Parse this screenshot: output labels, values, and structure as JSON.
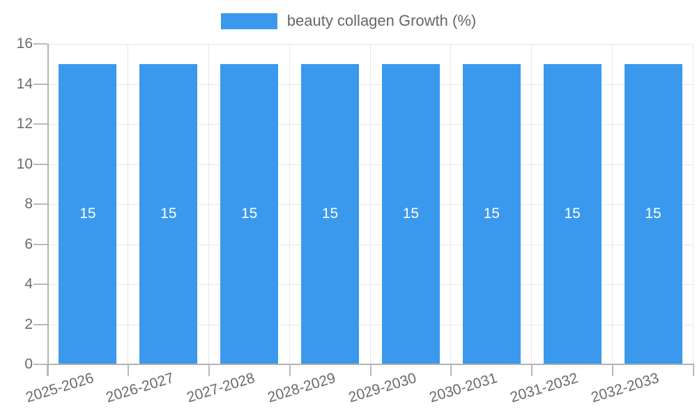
{
  "chart_data": {
    "type": "bar",
    "legend": {
      "label": "beauty collagen Growth (%)",
      "position": "top"
    },
    "categories": [
      "2025-2026",
      "2026-2027",
      "2027-2028",
      "2028-2029",
      "2029-2030",
      "2030-2031",
      "2031-2032",
      "2032-2033"
    ],
    "series": [
      {
        "name": "beauty collagen Growth (%)",
        "values": [
          15,
          15,
          15,
          15,
          15,
          15,
          15,
          15
        ],
        "bar_labels": [
          "15",
          "15",
          "15",
          "15",
          "15",
          "15",
          "15",
          "15"
        ]
      }
    ],
    "xlabel": "",
    "ylabel": "",
    "ylim": [
      0,
      16
    ],
    "yticks": [
      0,
      2,
      4,
      6,
      8,
      10,
      12,
      14,
      16
    ],
    "grid": true,
    "colors": {
      "bar": "#3a99ec",
      "grid": "#e7e7e7",
      "axis": "#b3b3b3",
      "tick": "#b9b9b9",
      "tick_text": "#6b6b6b",
      "legend_text": "#666666",
      "bar_value_text": "#ffffff",
      "background": "#ffffff"
    }
  }
}
